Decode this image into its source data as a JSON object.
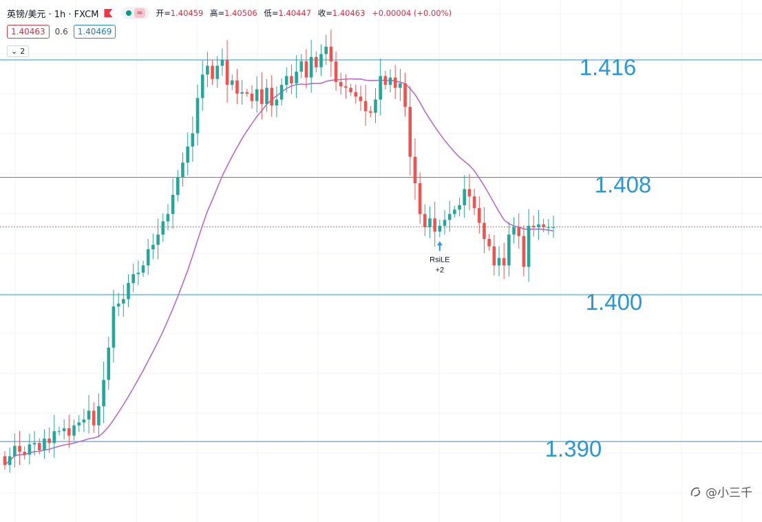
{
  "header": {
    "symbol": "英镑/美元 · 1h · FXCM",
    "wave_icon": "≈",
    "ohlc": [
      {
        "label": "开=",
        "value": "1.40459"
      },
      {
        "label": "高=",
        "value": "1.40506"
      },
      {
        "label": "低=",
        "value": "1.40447"
      },
      {
        "label": "收=",
        "value": "1.40463"
      },
      {
        "label": "",
        "value": "+0.00004 (+0.00%)"
      }
    ],
    "bid": "1.40463",
    "spread": "0.6",
    "ask": "1.40469",
    "indicator_count": "2"
  },
  "watermark": "@小三千",
  "chart_data": {
    "type": "candlestick",
    "interval": "1h",
    "level_lines": [
      {
        "value": 1.416,
        "label": "1.416"
      },
      {
        "value": 1.408,
        "label": "1.408"
      },
      {
        "value": 1.4,
        "label": "1.400"
      },
      {
        "value": 1.39,
        "label": "1.390"
      }
    ],
    "current_price": 1.40463,
    "signal": {
      "label": "RsiLE",
      "count": "+2",
      "bar_index": 88
    },
    "colors": {
      "up": "#26a69a",
      "down": "#ef5350",
      "ma": "#b36bc9",
      "level": "#2a92c9",
      "grid": "#f0f3fa",
      "current": "#ef5350"
    },
    "closes": [
      1.3884,
      1.389,
      1.3897,
      1.3893,
      1.3891,
      1.3898,
      1.3899,
      1.3894,
      1.3902,
      1.3899,
      1.3907,
      1.3907,
      1.3909,
      1.3904,
      1.3911,
      1.3913,
      1.3915,
      1.3921,
      1.3911,
      1.3924,
      1.3942,
      1.3964,
      1.3992,
      1.3994,
      1.3997,
      1.4008,
      1.4014,
      1.4015,
      1.402,
      1.4031,
      1.4034,
      1.4041,
      1.405,
      1.4055,
      1.4068,
      1.408,
      1.409,
      1.4101,
      1.411,
      1.4134,
      1.415,
      1.4156,
      1.4147,
      1.4156,
      1.416,
      1.4143,
      1.4146,
      1.4137,
      1.4138,
      1.4137,
      1.4132,
      1.414,
      1.413,
      1.4141,
      1.4129,
      1.4133,
      1.4143,
      1.4149,
      1.4144,
      1.4152,
      1.4159,
      1.4148,
      1.4162,
      1.4155,
      1.4164,
      1.4169,
      1.4159,
      1.4145,
      1.4142,
      1.4141,
      1.4138,
      1.4135,
      1.4132,
      1.4125,
      1.4124,
      1.4133,
      1.4149,
      1.4143,
      1.4148,
      1.4141,
      1.4144,
      1.4128,
      1.4094,
      1.4076,
      1.4055,
      1.4046,
      1.4052,
      1.4043,
      1.4047,
      1.4051,
      1.4055,
      1.4058,
      1.4061,
      1.4072,
      1.4067,
      1.4059,
      1.4049,
      1.4038,
      1.4033,
      1.402,
      1.4025,
      1.402,
      1.4041,
      1.4046,
      1.404,
      1.4019,
      1.4047,
      1.4046,
      1.4048,
      1.4046,
      1.4046,
      1.4046
    ]
  }
}
